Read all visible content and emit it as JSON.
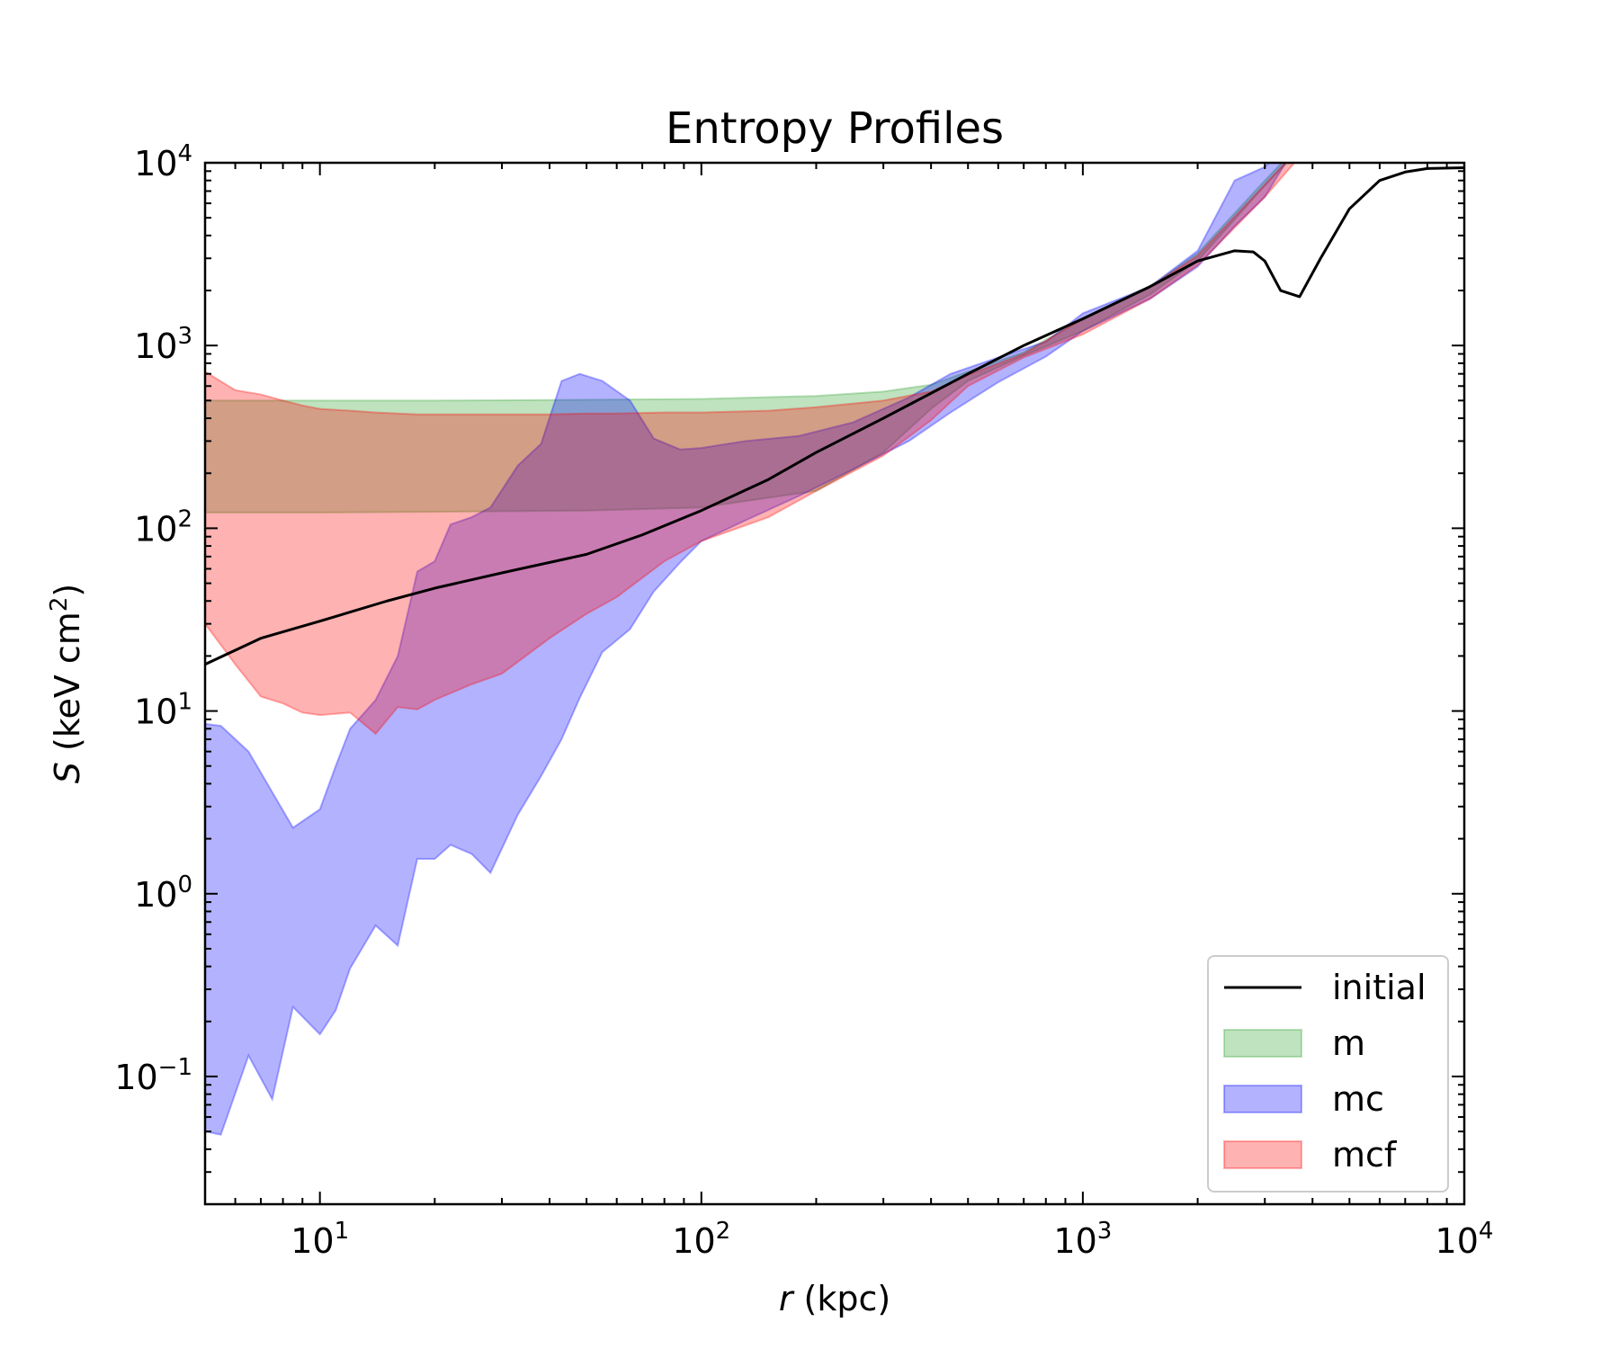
{
  "chart_data": {
    "type": "area",
    "title": "Entropy Profiles",
    "xlabel_var": "r",
    "xlabel_unit": " (kpc)",
    "ylabel_var": "S",
    "ylabel_unit": " (keV cm",
    "ylabel_sup": "2",
    "ylabel_close": ")",
    "x_scale": "log",
    "y_scale": "log",
    "xlim": [
      5,
      10000
    ],
    "ylim": [
      0.02,
      10000
    ],
    "x_ticks": [
      {
        "value": 10,
        "base": "10",
        "exp": "1"
      },
      {
        "value": 100,
        "base": "10",
        "exp": "2"
      },
      {
        "value": 1000,
        "base": "10",
        "exp": "3"
      },
      {
        "value": 10000,
        "base": "10",
        "exp": "4"
      }
    ],
    "y_ticks": [
      {
        "value": 0.1,
        "base": "10",
        "exp": "−1"
      },
      {
        "value": 1,
        "base": "10",
        "exp": "0"
      },
      {
        "value": 10,
        "base": "10",
        "exp": "1"
      },
      {
        "value": 100,
        "base": "10",
        "exp": "2"
      },
      {
        "value": 1000,
        "base": "10",
        "exp": "3"
      },
      {
        "value": 10000,
        "base": "10",
        "exp": "4"
      }
    ],
    "legend_position": "lower right",
    "grid": false,
    "series": [
      {
        "name": "m",
        "kind": "band",
        "fill": "#2ca02c",
        "x": [
          5,
          10,
          20,
          50,
          100,
          200,
          300,
          400,
          500,
          700,
          1000,
          1500,
          2000,
          3000,
          4000
        ],
        "upper": [
          500,
          500,
          500,
          505,
          510,
          530,
          560,
          610,
          720,
          920,
          1400,
          2100,
          3200,
          8000,
          15000
        ],
        "lower": [
          122,
          122,
          123,
          125,
          130,
          160,
          260,
          450,
          640,
          880,
          1200,
          1900,
          2900,
          7500,
          14000
        ]
      },
      {
        "name": "mc",
        "kind": "band",
        "fill": "#0000ff",
        "x": [
          5,
          5.5,
          6.5,
          7.5,
          8.5,
          10,
          11,
          12,
          14,
          16,
          18,
          20,
          22,
          25,
          28,
          33,
          38,
          43,
          48,
          55,
          65,
          75,
          88,
          100,
          130,
          180,
          250,
          350,
          450,
          600,
          800,
          1000,
          1500,
          2000,
          2500,
          3000,
          3500
        ],
        "upper": [
          8.5,
          8.3,
          6.0,
          3.6,
          2.3,
          2.9,
          5.0,
          8.0,
          11.5,
          20,
          58,
          66,
          105,
          115,
          130,
          220,
          290,
          640,
          700,
          640,
          500,
          310,
          270,
          275,
          300,
          320,
          380,
          520,
          700,
          860,
          1050,
          1500,
          2100,
          3300,
          8000,
          9500,
          13000
        ],
        "lower": [
          0.05,
          0.048,
          0.13,
          0.075,
          0.24,
          0.17,
          0.23,
          0.39,
          0.67,
          0.52,
          1.55,
          1.55,
          1.85,
          1.65,
          1.3,
          2.7,
          4.4,
          7.0,
          11.8,
          21,
          28,
          45,
          65,
          85,
          110,
          150,
          210,
          300,
          430,
          630,
          870,
          1200,
          1800,
          2700,
          4500,
          6500,
          11000
        ]
      },
      {
        "name": "mcf",
        "kind": "band",
        "fill": "#ff0000",
        "x": [
          5,
          6,
          7,
          8,
          9,
          10,
          12,
          14,
          16,
          18,
          20,
          25,
          30,
          40,
          50,
          60,
          80,
          100,
          150,
          200,
          300,
          400,
          500,
          700,
          1000,
          1500,
          2000,
          3000,
          4000
        ],
        "upper": [
          720,
          570,
          540,
          500,
          470,
          450,
          440,
          430,
          425,
          420,
          420,
          420,
          420,
          420,
          425,
          425,
          430,
          430,
          440,
          460,
          500,
          560,
          690,
          900,
          1400,
          2100,
          3100,
          7600,
          14500
        ],
        "lower": [
          30,
          18,
          12,
          11,
          9.8,
          9.5,
          9.8,
          7.5,
          10.5,
          10.2,
          11.5,
          14,
          16,
          25,
          34,
          42,
          66,
          85,
          115,
          160,
          250,
          390,
          600,
          860,
          1150,
          1800,
          2750,
          6500,
          13000
        ]
      },
      {
        "name": "initial",
        "kind": "line",
        "color": "#000000",
        "x": [
          5,
          7,
          10,
          15,
          20,
          30,
          50,
          70,
          100,
          150,
          200,
          300,
          500,
          700,
          1000,
          1500,
          2000,
          2500,
          2800,
          3000,
          3300,
          3700,
          4200,
          5000,
          6000,
          7000,
          8000,
          10000
        ],
        "y": [
          18,
          25,
          31,
          40,
          47,
          57,
          72,
          92,
          125,
          185,
          260,
          400,
          700,
          1000,
          1400,
          2100,
          2900,
          3300,
          3250,
          2900,
          2000,
          1850,
          3000,
          5600,
          8000,
          8900,
          9300,
          9400
        ]
      }
    ]
  }
}
